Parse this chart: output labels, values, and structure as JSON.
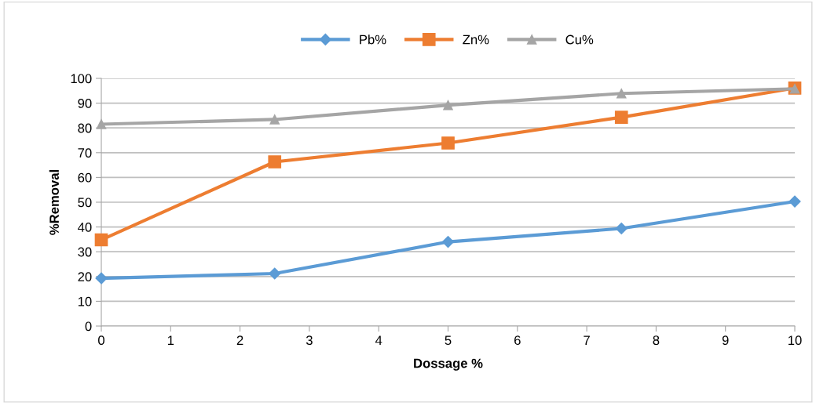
{
  "chart_data": {
    "type": "line",
    "xlabel": "Dossage %",
    "ylabel": "%Removal",
    "x": [
      0,
      2.5,
      5,
      7.5,
      10
    ],
    "series": [
      {
        "name": "Pb%",
        "color": "#5b9bd5",
        "marker": "diamond",
        "values": [
          19.3,
          21.2,
          34.0,
          39.4,
          50.3
        ]
      },
      {
        "name": "Zn%",
        "color": "#ed7d31",
        "marker": "square",
        "values": [
          34.8,
          66.3,
          73.9,
          84.3,
          96.1
        ]
      },
      {
        "name": "Cu%",
        "color": "#a5a5a5",
        "marker": "triangle",
        "values": [
          81.5,
          83.4,
          89.2,
          93.9,
          95.8
        ]
      }
    ],
    "xlim": [
      0,
      10
    ],
    "xticks": [
      0,
      1,
      2,
      3,
      4,
      5,
      6,
      7,
      8,
      9,
      10
    ],
    "ylim": [
      0,
      100
    ],
    "yticks": [
      0,
      10,
      20,
      30,
      40,
      50,
      60,
      70,
      80,
      90,
      100
    ],
    "grid": "y",
    "legend": "top",
    "line_style": "solid"
  }
}
